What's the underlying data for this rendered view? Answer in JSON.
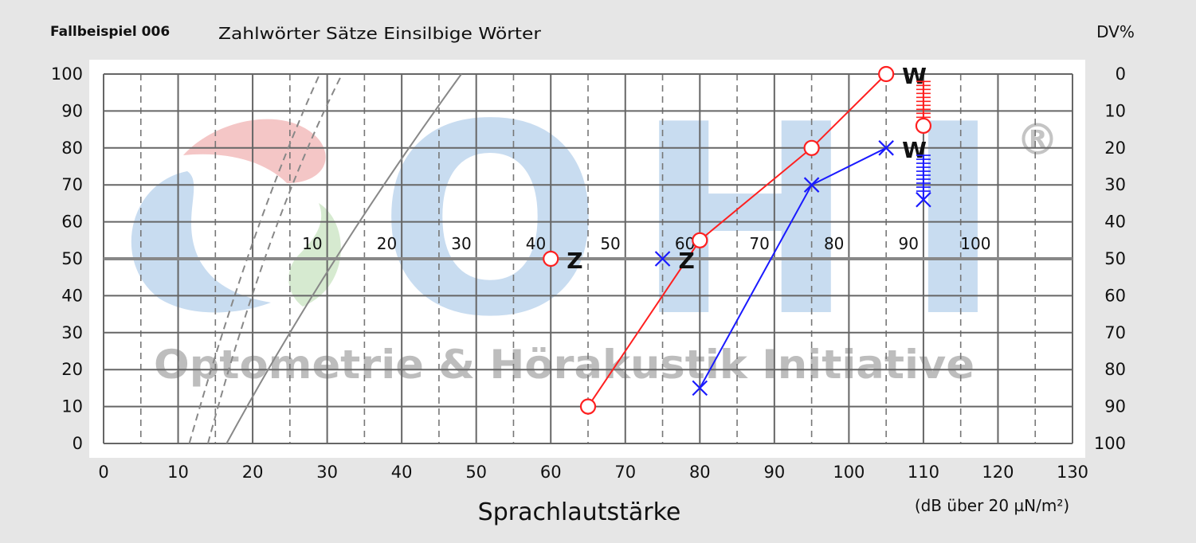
{
  "header": {
    "case_label": "Fallbeispiel 006",
    "legend_text": "Zahlwörter  Sätze  Einsilbige Wörter",
    "right_axis_title": "DV%"
  },
  "watermark": {
    "letters": [
      "O",
      "H",
      "I"
    ],
    "registered": "®",
    "tagline": "Optometrie & Hörakustik Initiative"
  },
  "chart_data": {
    "type": "line",
    "xlabel": "Sprachlautstärke",
    "xunit": "(dB über 20 µN/m²)",
    "xlim": [
      0,
      130
    ],
    "ylim": [
      0,
      100
    ],
    "x_ticks": [
      0,
      10,
      20,
      30,
      40,
      50,
      60,
      70,
      80,
      90,
      100,
      110,
      120,
      130
    ],
    "y_ticks": [
      0,
      10,
      20,
      30,
      40,
      50,
      60,
      70,
      80,
      90,
      100
    ],
    "right_ticks": [
      "0",
      "10",
      "20",
      "30",
      "40",
      "50",
      "60",
      "70",
      "80",
      "90",
      "100"
    ],
    "loss_scale": [
      {
        "label": "10",
        "x": 28
      },
      {
        "label": "20",
        "x": 38
      },
      {
        "label": "30",
        "x": 48
      },
      {
        "label": "40",
        "x": 58
      },
      {
        "label": "50",
        "x": 68
      },
      {
        "label": "60",
        "x": 78
      },
      {
        "label": "70",
        "x": 88
      },
      {
        "label": "80",
        "x": 98
      },
      {
        "label": "90",
        "x": 108
      },
      {
        "label": "100",
        "x": 117
      }
    ],
    "reference_curves": [
      {
        "style": "dashed",
        "points": [
          [
            11.5,
            0
          ],
          [
            20,
            60
          ],
          [
            29,
            100
          ]
        ]
      },
      {
        "style": "dashed",
        "points": [
          [
            14,
            0
          ],
          [
            22,
            60
          ],
          [
            32,
            100
          ]
        ]
      },
      {
        "style": "solid",
        "points": [
          [
            16.5,
            0
          ],
          [
            30,
            50
          ],
          [
            48,
            100
          ]
        ]
      }
    ],
    "series": [
      {
        "color": "#ff2020",
        "marker": "circle",
        "curve": [
          [
            65,
            10
          ],
          [
            80,
            55
          ],
          [
            95,
            80
          ],
          [
            105,
            100
          ]
        ],
        "numbers_point": {
          "x": 60,
          "y": 50,
          "label": "Z"
        },
        "words_label": {
          "x": 105,
          "y": 100,
          "label": "W"
        },
        "discomfort": {
          "x": 110,
          "y_from": 98,
          "y_to": 86
        }
      },
      {
        "color": "#1a1aff",
        "marker": "x",
        "curve": [
          [
            80,
            15
          ],
          [
            95,
            70
          ],
          [
            105,
            80
          ]
        ],
        "numbers_point": {
          "x": 75,
          "y": 50,
          "label": "Z"
        },
        "words_label": {
          "x": 105,
          "y": 80,
          "label": "W"
        },
        "discomfort": {
          "x": 110,
          "y_from": 78,
          "y_to": 66
        }
      }
    ]
  }
}
